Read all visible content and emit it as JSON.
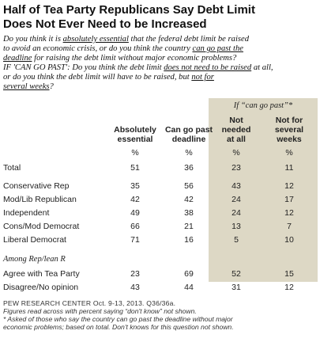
{
  "title_line1": "Half of Tea Party Republicans Say Debt Limit",
  "title_line2": "Does Not Ever Need to be Increased",
  "question": {
    "l1a": "Do you think it is ",
    "l1b": "absolutely essential",
    "l1c": " that the federal debt limit be raised",
    "l2a": "to avoid an economic crisis, or do you think the country ",
    "l2b": "can go past the",
    "l3a": "deadline",
    "l3b": " for raising the debt limit without major economic problems?",
    "l4a": "IF 'CAN GO PAST': Do you think the debt limit ",
    "l4b": "does not need to be raised",
    "l4c": " at all,",
    "l5a": "or do you think the debt limit will have to be raised, but ",
    "l5b": "not for",
    "l6a": "several weeks",
    "l6b": "?"
  },
  "table": {
    "conditional_header": "If “can go past”*",
    "columns": [
      {
        "l1": "Absolutely",
        "l2": "essential",
        "l3": ""
      },
      {
        "l1": "Can go past",
        "l2": "deadline",
        "l3": ""
      },
      {
        "l1": "Not",
        "l2": "needed",
        "l3": "at all"
      },
      {
        "l1": "Not for",
        "l2": "several",
        "l3": "weeks"
      }
    ],
    "pct_symbol": "%",
    "rows": [
      {
        "label": "Total",
        "values": [
          "51",
          "36",
          "23",
          "11"
        ]
      },
      {
        "label": "Conservative Rep",
        "values": [
          "35",
          "56",
          "43",
          "12"
        ]
      },
      {
        "label": "Mod/Lib Republican",
        "values": [
          "42",
          "42",
          "24",
          "17"
        ]
      },
      {
        "label": "Independent",
        "values": [
          "49",
          "38",
          "24",
          "12"
        ]
      },
      {
        "label": "Cons/Mod Democrat",
        "values": [
          "66",
          "21",
          "13",
          "7"
        ]
      },
      {
        "label": "Liberal Democrat",
        "values": [
          "71",
          "16",
          "5",
          "10"
        ]
      },
      {
        "label": "Agree with Tea Party",
        "values": [
          "23",
          "69",
          "52",
          "15"
        ]
      },
      {
        "label": "Disagree/No opinion",
        "values": [
          "43",
          "44",
          "31",
          "12"
        ]
      }
    ],
    "section_label": "Among Rep/lean R"
  },
  "footer": {
    "source": "PEW RESEARCH CENTER Oct. 9-13, 2013. Q36/36a.",
    "note1": "Figures read across with percent saying “don't know” not shown.",
    "note2": "* Asked of those who say the country can go past the deadline without major",
    "note3": "economic problems; based on total. Don't knows for this question not shown."
  }
}
